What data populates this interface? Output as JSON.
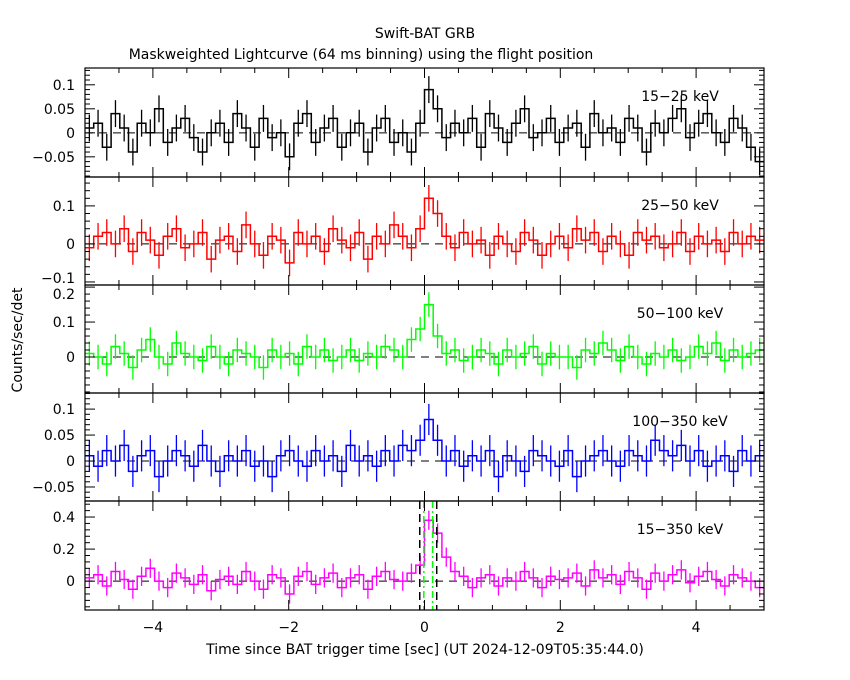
{
  "chart_data": {
    "type": "line",
    "title": "Swift-BAT GRB",
    "subtitle": "Maskweighted Lightcurve (64 ms binning) using the flight position",
    "xlabel": "Time since BAT trigger time [sec] (UT 2024-12-09T05:35:44.0)",
    "ylabel": "Counts/sec/det",
    "xlim": [
      -5,
      5
    ],
    "xticks": [
      "-4",
      "-2",
      "0",
      "2",
      "4"
    ],
    "xtick_values": [
      -4,
      -2,
      0,
      2,
      4
    ],
    "panels": [
      {
        "name": "15-25 keV",
        "label": "15−25 keV",
        "color": "#000000",
        "ylim": [
          -0.092,
          0.135
        ],
        "error": 0.028,
        "yticks": [
          {
            "v": 0.1,
            "t": "0.1"
          },
          {
            "v": 0.05,
            "t": "0.05"
          },
          {
            "v": 0,
            "t": "0"
          },
          {
            "v": -0.05,
            "t": "−0.05"
          }
        ],
        "values": [
          0.01,
          0.02,
          -0.03,
          0.04,
          0.01,
          -0.04,
          0.02,
          0.0,
          0.05,
          -0.02,
          0.01,
          0.03,
          -0.01,
          -0.04,
          0.0,
          0.02,
          -0.02,
          0.04,
          0.01,
          -0.03,
          0.03,
          -0.01,
          0.0,
          -0.05,
          0.02,
          0.04,
          -0.02,
          0.01,
          0.03,
          -0.03,
          0.0,
          0.02,
          -0.04,
          0.01,
          0.03,
          -0.02,
          0.0,
          -0.04,
          0.02,
          0.09,
          0.05,
          -0.01,
          0.02,
          0.0,
          0.03,
          -0.03,
          0.04,
          0.01,
          -0.02,
          0.02,
          0.05,
          -0.01,
          0.0,
          0.03,
          -0.02,
          0.01,
          0.02,
          -0.03,
          0.04,
          0.0,
          0.01,
          -0.02,
          0.03,
          0.01,
          -0.04,
          0.02,
          0.0,
          0.03,
          0.05,
          -0.01,
          0.02,
          0.04,
          0.0,
          -0.02,
          0.03,
          0.01,
          -0.03,
          -0.06
        ]
      },
      {
        "name": "25-50 keV",
        "label": "25−50 keV",
        "color": "#ff0000",
        "ylim": [
          -0.108,
          0.176
        ],
        "error": 0.035,
        "yticks": [
          {
            "v": 0.1,
            "t": "0.1"
          },
          {
            "v": 0,
            "t": "0"
          },
          {
            "v": -0.1,
            "t": "−0.1"
          }
        ],
        "values": [
          -0.01,
          0.02,
          0.03,
          0.0,
          0.04,
          -0.02,
          0.03,
          0.01,
          -0.03,
          0.02,
          0.04,
          -0.01,
          0.0,
          0.03,
          -0.04,
          0.01,
          0.02,
          -0.02,
          0.05,
          0.0,
          -0.03,
          0.02,
          0.01,
          -0.05,
          0.03,
          0.0,
          0.02,
          -0.02,
          0.04,
          0.01,
          -0.01,
          0.03,
          -0.04,
          0.02,
          0.0,
          0.05,
          0.02,
          -0.01,
          0.04,
          0.12,
          0.08,
          0.02,
          -0.01,
          0.03,
          0.0,
          0.01,
          -0.03,
          0.02,
          0.0,
          -0.02,
          0.03,
          0.01,
          -0.03,
          0.0,
          0.02,
          -0.01,
          0.04,
          0.01,
          0.03,
          -0.02,
          0.02,
          0.0,
          -0.03,
          0.03,
          0.01,
          0.02,
          -0.01,
          0.0,
          0.03,
          -0.02,
          0.02,
          0.0,
          0.01,
          -0.02,
          0.03,
          0.0,
          0.02,
          0.01
        ]
      },
      {
        "name": "50-100 keV",
        "label": "50−100 keV",
        "color": "#00ff00",
        "ylim": [
          -0.103,
          0.206
        ],
        "error": 0.035,
        "yticks": [
          {
            "v": 0.2,
            "t": "0.2"
          },
          {
            "v": 0.1,
            "t": "0.1"
          },
          {
            "v": 0,
            "t": "0"
          }
        ],
        "values": [
          0.01,
          0.0,
          -0.02,
          0.03,
          0.01,
          -0.03,
          0.02,
          0.05,
          0.0,
          -0.02,
          0.04,
          0.01,
          0.0,
          -0.01,
          0.03,
          0.0,
          -0.02,
          0.02,
          0.01,
          0.0,
          -0.03,
          0.02,
          0.0,
          0.01,
          -0.02,
          0.03,
          0.0,
          0.02,
          -0.01,
          0.0,
          0.02,
          -0.01,
          0.01,
          0.0,
          0.03,
          0.02,
          0.0,
          0.05,
          0.08,
          0.15,
          0.06,
          0.01,
          0.02,
          -0.01,
          0.0,
          0.02,
          0.01,
          -0.02,
          0.02,
          0.0,
          0.01,
          0.03,
          -0.02,
          0.01,
          0.0,
          0.0,
          -0.03,
          0.02,
          0.01,
          0.04,
          0.02,
          -0.01,
          0.03,
          0.0,
          -0.02,
          0.01,
          0.0,
          0.02,
          -0.01,
          0.0,
          0.03,
          0.01,
          0.04,
          -0.01,
          0.02,
          0.0,
          0.01,
          0.02
        ]
      },
      {
        "name": "100-350 keV",
        "label": "100−350 keV",
        "color": "#0000ff",
        "ylim": [
          -0.077,
          0.131
        ],
        "error": 0.03,
        "yticks": [
          {
            "v": 0.1,
            "t": "0.1"
          },
          {
            "v": 0.05,
            "t": "0.05"
          },
          {
            "v": 0,
            "t": "0"
          },
          {
            "v": -0.05,
            "t": "−0.05"
          }
        ],
        "values": [
          0.01,
          -0.01,
          0.02,
          0.0,
          0.03,
          -0.02,
          0.01,
          0.02,
          -0.03,
          0.0,
          0.02,
          0.01,
          -0.01,
          0.03,
          0.0,
          -0.02,
          0.01,
          0.0,
          0.02,
          -0.01,
          0.0,
          -0.03,
          0.01,
          0.02,
          0.0,
          -0.01,
          0.02,
          0.0,
          0.01,
          -0.02,
          0.03,
          0.0,
          0.01,
          -0.01,
          0.02,
          0.0,
          0.03,
          0.02,
          0.04,
          0.08,
          0.04,
          0.0,
          0.02,
          -0.01,
          0.01,
          0.0,
          0.02,
          -0.03,
          0.01,
          0.0,
          -0.02,
          0.02,
          0.01,
          0.0,
          -0.01,
          0.02,
          -0.03,
          0.0,
          0.01,
          0.02,
          0.0,
          -0.01,
          0.02,
          0.01,
          0.0,
          0.04,
          0.02,
          0.01,
          0.03,
          0.0,
          0.02,
          -0.01,
          0.0,
          0.01,
          -0.02,
          0.02,
          0.0,
          0.01
        ]
      },
      {
        "name": "15-350 keV",
        "label": "15−350 keV",
        "color": "#ff00ff",
        "ylim": [
          -0.18,
          0.5
        ],
        "error": 0.06,
        "yticks": [
          {
            "v": 0.4,
            "t": "0.4"
          },
          {
            "v": 0.2,
            "t": "0.2"
          },
          {
            "v": 0,
            "t": "0"
          }
        ],
        "values": [
          0.02,
          0.04,
          -0.03,
          0.06,
          0.01,
          -0.05,
          0.03,
          0.08,
          0.0,
          -0.04,
          0.05,
          0.02,
          -0.02,
          0.04,
          -0.06,
          0.01,
          0.03,
          -0.02,
          0.06,
          0.0,
          -0.05,
          0.04,
          0.02,
          -0.08,
          0.03,
          0.06,
          -0.02,
          0.02,
          0.05,
          -0.04,
          0.02,
          0.04,
          -0.05,
          0.03,
          0.06,
          0.01,
          0.0,
          0.05,
          0.1,
          0.38,
          0.3,
          0.15,
          0.06,
          0.03,
          -0.04,
          0.02,
          0.04,
          -0.03,
          0.02,
          0.0,
          0.06,
          0.02,
          -0.04,
          0.03,
          0.01,
          0.02,
          0.05,
          -0.03,
          0.07,
          0.02,
          0.04,
          -0.02,
          0.06,
          0.02,
          -0.05,
          0.05,
          0.0,
          0.04,
          0.07,
          -0.01,
          0.03,
          0.06,
          0.01,
          -0.03,
          0.04,
          0.02,
          0.0,
          -0.04
        ],
        "annotations": [
          {
            "type": "vline",
            "x": -0.07,
            "color": "#000000",
            "style": "dashed"
          },
          {
            "type": "vline",
            "x": 0.18,
            "color": "#000000",
            "style": "dashed"
          },
          {
            "type": "vline",
            "x": -0.01,
            "color": "#00ff00",
            "style": "dash-dot"
          },
          {
            "type": "vline",
            "x": 0.12,
            "color": "#00ff00",
            "style": "dash-dot"
          }
        ]
      }
    ],
    "grid": false
  }
}
